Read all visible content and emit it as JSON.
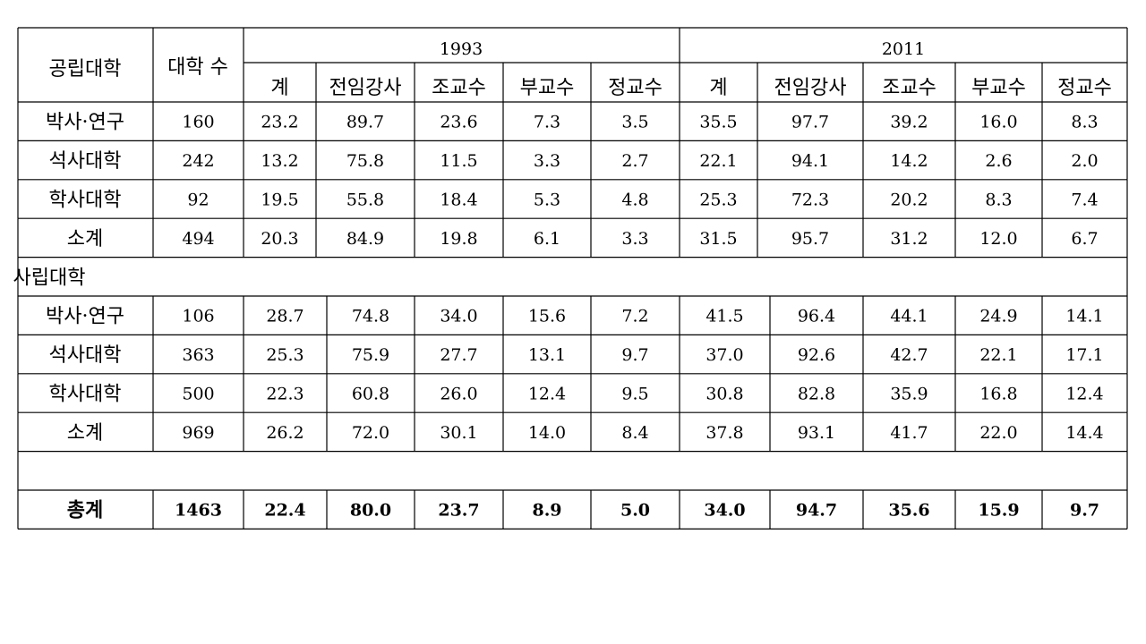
{
  "header": {
    "group_label": "공립대학",
    "count_label": "대학 수",
    "years": [
      "1993",
      "2011"
    ],
    "columns": [
      "계",
      "전임강사",
      "조교수",
      "부교수",
      "정교수"
    ]
  },
  "public_rows": [
    {
      "label": "박사·연구",
      "values": [
        "160",
        "23.2",
        "89.7",
        "23.6",
        "7.3",
        "3.5",
        "35.5",
        "97.7",
        "39.2",
        "16.0",
        "8.3"
      ]
    },
    {
      "label": "석사대학",
      "values": [
        "242",
        "13.2",
        "75.8",
        "11.5",
        "3.3",
        "2.7",
        "22.1",
        "94.1",
        "14.2",
        "2.6",
        "2.0"
      ]
    },
    {
      "label": "학사대학",
      "values": [
        "92",
        "19.5",
        "55.8",
        "18.4",
        "5.3",
        "4.8",
        "25.3",
        "72.3",
        "20.2",
        "8.3",
        "7.4"
      ]
    },
    {
      "label": "소계",
      "values": [
        "494",
        "20.3",
        "84.9",
        "19.8",
        "6.1",
        "3.3",
        "31.5",
        "95.7",
        "31.2",
        "12.0",
        "6.7"
      ]
    }
  ],
  "private_label": "사립대학",
  "private_rows": [
    {
      "label": "박사·연구",
      "values": [
        "106",
        "28.7",
        "74.8",
        "34.0",
        "15.6",
        "7.2",
        "41.5",
        "96.4",
        "44.1",
        "24.9",
        "14.1"
      ]
    },
    {
      "label": "석사대학",
      "values": [
        "363",
        "25.3",
        "75.9",
        "27.7",
        "13.1",
        "9.7",
        "37.0",
        "92.6",
        "42.7",
        "22.1",
        "17.1"
      ]
    },
    {
      "label": "학사대학",
      "values": [
        "500",
        "22.3",
        "60.8",
        "26.0",
        "12.4",
        "9.5",
        "30.8",
        "82.8",
        "35.9",
        "16.8",
        "12.4"
      ]
    },
    {
      "label": "소계",
      "values": [
        "969",
        "26.2",
        "72.0",
        "30.1",
        "14.0",
        "8.4",
        "37.8",
        "93.1",
        "41.7",
        "22.0",
        "14.4"
      ]
    }
  ],
  "total": {
    "label": "총계",
    "values": [
      "1463",
      "22.4",
      "80.0",
      "23.7",
      "8.9",
      "5.0",
      "34.0",
      "94.7",
      "35.6",
      "15.9",
      "9.7"
    ]
  }
}
